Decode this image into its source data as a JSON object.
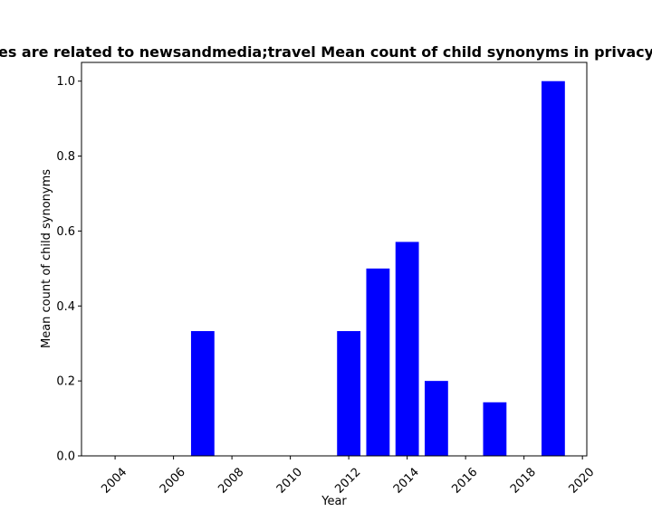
{
  "chart_data": {
    "type": "bar",
    "title": "es are related to newsandmedia;travel Mean count of child synonyms in privacy",
    "xlabel": "Year",
    "ylabel": "Mean count of child synonyms",
    "x": [
      2004,
      2005,
      2006,
      2007,
      2008,
      2009,
      2010,
      2011,
      2012,
      2013,
      2014,
      2015,
      2016,
      2017,
      2018,
      2019
    ],
    "values": [
      0,
      0,
      0,
      0.333,
      0,
      0,
      0,
      0,
      0.333,
      0.5,
      0.571,
      0.2,
      0,
      0.143,
      0,
      1.0
    ],
    "xlim": [
      2002.85,
      2020.15
    ],
    "ylim": [
      0,
      1.05
    ],
    "xticks": [
      2004,
      2006,
      2008,
      2010,
      2012,
      2014,
      2016,
      2018,
      2020
    ],
    "yticks": [
      "0.0",
      "0.2",
      "0.4",
      "0.6",
      "0.8",
      "1.0"
    ],
    "bar_color": "#0000ff",
    "grid": false,
    "legend": "none"
  }
}
